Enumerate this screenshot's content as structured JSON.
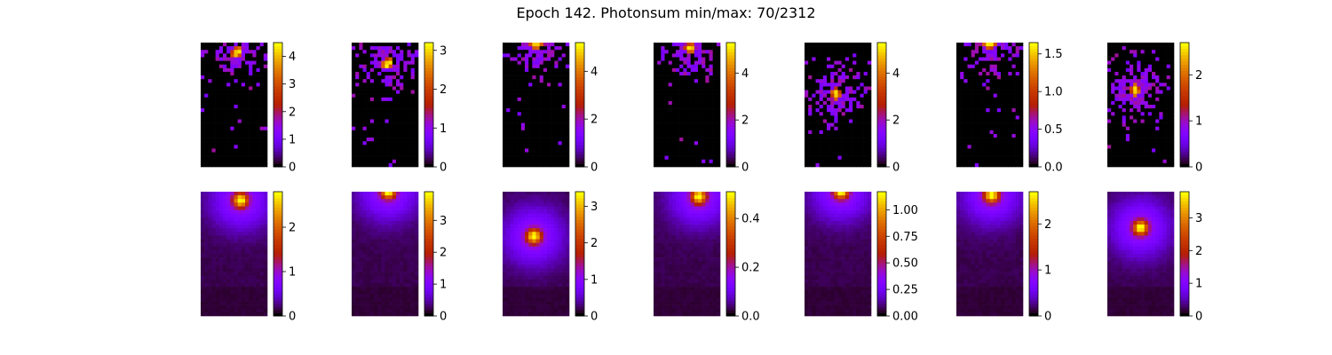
{
  "title": "Epoch 142. Photonsum min/max: 70/2312",
  "colormap": "gnuplot",
  "chart_data": [
    {
      "type": "heatmap",
      "row": 1,
      "col": 1,
      "kind": "photons",
      "vmin": 0,
      "vmax": 4.5,
      "ticks": [
        "0",
        "1",
        "2",
        "3",
        "4"
      ],
      "tick_values": [
        0,
        1,
        2,
        3,
        4
      ],
      "spot": {
        "cx": 0.55,
        "cy": 0.08
      }
    },
    {
      "type": "heatmap",
      "row": 1,
      "col": 2,
      "kind": "photons",
      "vmin": 0,
      "vmax": 3.2,
      "ticks": [
        "0",
        "1",
        "2",
        "3"
      ],
      "tick_values": [
        0,
        1,
        2,
        3
      ],
      "spot": {
        "cx": 0.55,
        "cy": 0.17
      }
    },
    {
      "type": "heatmap",
      "row": 1,
      "col": 3,
      "kind": "photons",
      "vmin": 0,
      "vmax": 5.2,
      "ticks": [
        "0",
        "2",
        "4"
      ],
      "tick_values": [
        0,
        2,
        4
      ],
      "spot": {
        "cx": 0.5,
        "cy": 0.02
      }
    },
    {
      "type": "heatmap",
      "row": 1,
      "col": 4,
      "kind": "photons",
      "vmin": 0,
      "vmax": 5.3,
      "ticks": [
        "0",
        "2",
        "4"
      ],
      "tick_values": [
        0,
        2,
        4
      ],
      "spot": {
        "cx": 0.55,
        "cy": 0.04
      }
    },
    {
      "type": "heatmap",
      "row": 1,
      "col": 5,
      "kind": "photons",
      "vmin": 0,
      "vmax": 5.3,
      "ticks": [
        "0",
        "2",
        "4"
      ],
      "tick_values": [
        0,
        2,
        4
      ],
      "spot": {
        "cx": 0.47,
        "cy": 0.41
      }
    },
    {
      "type": "heatmap",
      "row": 1,
      "col": 6,
      "kind": "photons",
      "vmin": 0,
      "vmax": 1.65,
      "ticks": [
        "0.0",
        "0.5",
        "1.0",
        "1.5"
      ],
      "tick_values": [
        0,
        0.5,
        1,
        1.5
      ],
      "spot": {
        "cx": 0.5,
        "cy": 0.02
      }
    },
    {
      "type": "heatmap",
      "row": 1,
      "col": 7,
      "kind": "photons",
      "vmin": 0,
      "vmax": 2.7,
      "ticks": [
        "0",
        "1",
        "2"
      ],
      "tick_values": [
        0,
        1,
        2
      ],
      "spot": {
        "cx": 0.42,
        "cy": 0.38
      }
    },
    {
      "type": "heatmap",
      "row": 2,
      "col": 1,
      "kind": "smooth",
      "vmin": 0,
      "vmax": 2.8,
      "ticks": [
        "0",
        "1",
        "2"
      ],
      "tick_values": [
        0,
        1,
        2
      ],
      "spot": {
        "cx": 0.6,
        "cy": 0.07
      }
    },
    {
      "type": "heatmap",
      "row": 2,
      "col": 2,
      "kind": "smooth",
      "vmin": 0,
      "vmax": 3.9,
      "ticks": [
        "0",
        "1",
        "2",
        "3"
      ],
      "tick_values": [
        0,
        1,
        2,
        3
      ],
      "spot": {
        "cx": 0.55,
        "cy": 0.0
      }
    },
    {
      "type": "heatmap",
      "row": 2,
      "col": 3,
      "kind": "smooth",
      "vmin": 0,
      "vmax": 3.4,
      "ticks": [
        "0",
        "1",
        "2",
        "3"
      ],
      "tick_values": [
        0,
        1,
        2,
        3
      ],
      "spot": {
        "cx": 0.47,
        "cy": 0.36
      }
    },
    {
      "type": "heatmap",
      "row": 2,
      "col": 4,
      "kind": "smooth",
      "vmin": 0,
      "vmax": 0.51,
      "ticks": [
        "0.0",
        "0.2",
        "0.4"
      ],
      "tick_values": [
        0,
        0.2,
        0.4
      ],
      "spot": {
        "cx": 0.68,
        "cy": 0.04
      }
    },
    {
      "type": "heatmap",
      "row": 2,
      "col": 5,
      "kind": "smooth",
      "vmin": 0,
      "vmax": 1.17,
      "ticks": [
        "0.00",
        "0.25",
        "0.50",
        "0.75",
        "1.00"
      ],
      "tick_values": [
        0,
        0.25,
        0.5,
        0.75,
        1
      ],
      "spot": {
        "cx": 0.55,
        "cy": 0.0
      }
    },
    {
      "type": "heatmap",
      "row": 2,
      "col": 6,
      "kind": "smooth",
      "vmin": 0,
      "vmax": 2.7,
      "ticks": [
        "0",
        "1",
        "2"
      ],
      "tick_values": [
        0,
        1,
        2
      ],
      "spot": {
        "cx": 0.53,
        "cy": 0.03
      }
    },
    {
      "type": "heatmap",
      "row": 2,
      "col": 7,
      "kind": "smooth",
      "vmin": 0,
      "vmax": 3.8,
      "ticks": [
        "0",
        "1",
        "2",
        "3"
      ],
      "tick_values": [
        0,
        1,
        2,
        3
      ],
      "spot": {
        "cx": 0.5,
        "cy": 0.29
      }
    }
  ]
}
